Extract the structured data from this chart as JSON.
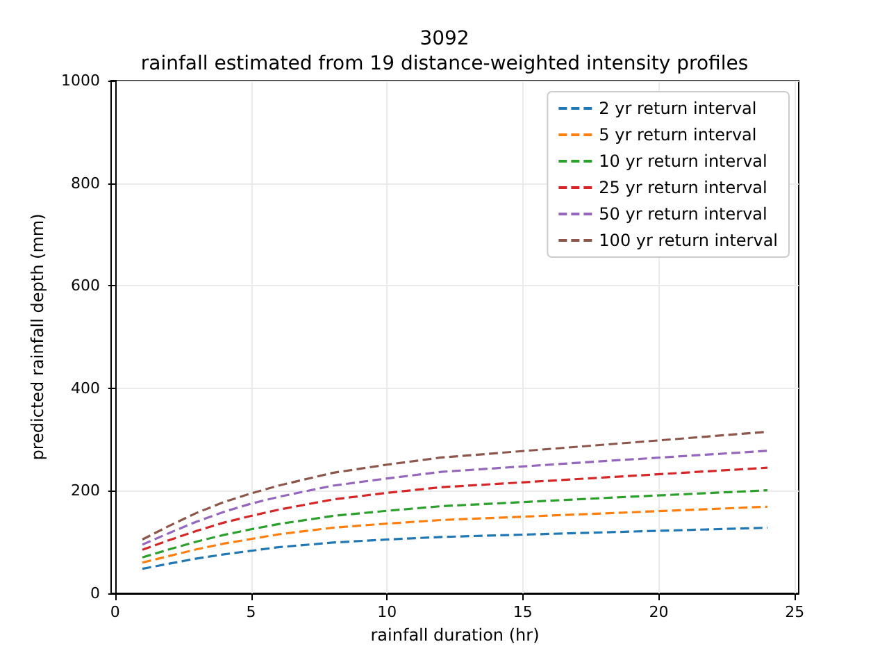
{
  "chart_data": {
    "type": "line",
    "title": "3092",
    "subtitle": "rainfall estimated from 19 distance-weighted intensity profiles",
    "xlabel": "rainfall duration (hr)",
    "ylabel": "predicted rainfall depth (mm)",
    "x": [
      1,
      2,
      3,
      4,
      5,
      6,
      8,
      10,
      12,
      18,
      24
    ],
    "series": [
      {
        "name": "2 yr return interval",
        "color": "#1f77b4",
        "values": [
          48,
          58,
          68,
          76,
          83,
          90,
          99,
          105,
          110,
          119,
          128
        ]
      },
      {
        "name": "5 yr return interval",
        "color": "#ff7f0e",
        "values": [
          60,
          73,
          86,
          97,
          106,
          115,
          128,
          136,
          143,
          156,
          169
        ]
      },
      {
        "name": "10 yr return interval",
        "color": "#2ca02c",
        "values": [
          70,
          86,
          101,
          114,
          125,
          135,
          151,
          161,
          170,
          186,
          201
        ]
      },
      {
        "name": "25 yr return interval",
        "color": "#d62728",
        "values": [
          85,
          104,
          122,
          138,
          151,
          163,
          183,
          196,
          207,
          226,
          245
        ]
      },
      {
        "name": "50 yr return interval",
        "color": "#9467bd",
        "values": [
          95,
          118,
          140,
          159,
          175,
          188,
          210,
          224,
          237,
          258,
          278
        ]
      },
      {
        "name": "100 yr return interval",
        "color": "#8c564b",
        "values": [
          105,
          132,
          157,
          178,
          195,
          210,
          235,
          251,
          265,
          290,
          315
        ]
      }
    ],
    "xlim": [
      -0.15,
      25.15
    ],
    "xticks": [
      0,
      5,
      10,
      15,
      20,
      25
    ],
    "ylim": [
      0,
      1000
    ],
    "yticks": [
      0,
      200,
      400,
      600,
      800,
      1000
    ],
    "grid": true,
    "legend": "top right",
    "line_style": "dashed",
    "marker": "none"
  }
}
